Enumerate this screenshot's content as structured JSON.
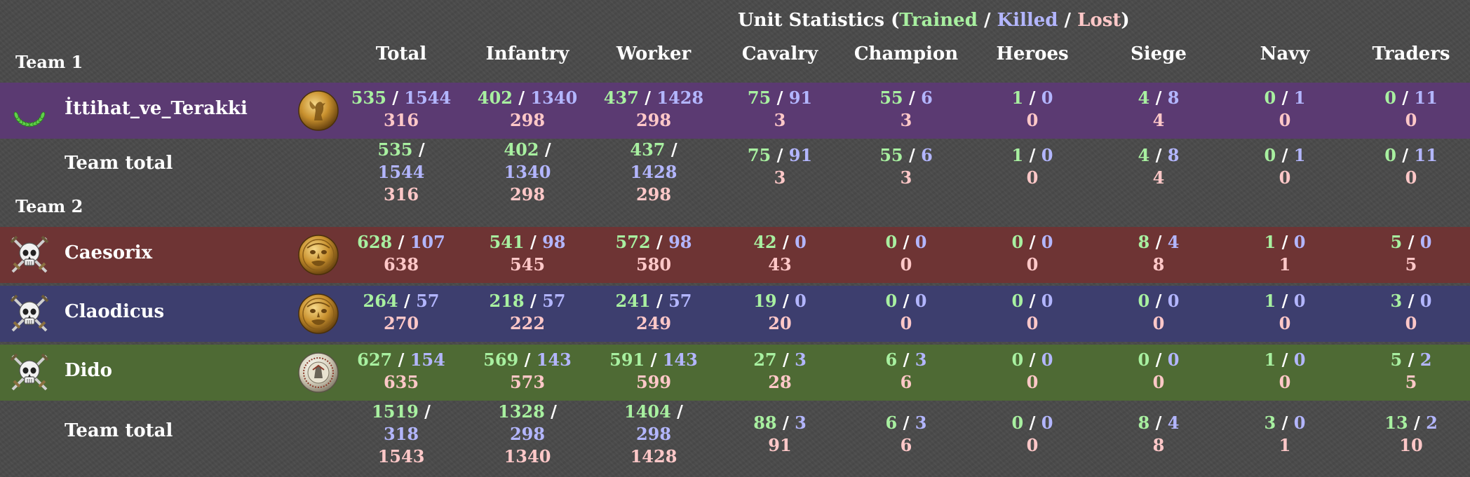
{
  "heading": {
    "prefix": "Unit Statistics (",
    "trained": "Trained",
    "sep1": " / ",
    "killed": "Killed",
    "sep2": " / ",
    "lost": "Lost",
    "suffix": ")"
  },
  "columns": [
    "Total",
    "Infantry",
    "Worker",
    "Cavalry",
    "Champion",
    "Heroes",
    "Siege",
    "Navy",
    "Traders"
  ],
  "teams": [
    {
      "label": "Team 1",
      "players": [
        {
          "name": "İttihat_ve_Terakki",
          "status_icon": "laurel-wreath-icon",
          "civ_emblem": "gold-eagle-emblem",
          "color": "#5b3a72",
          "stats": [
            {
              "trained": "535",
              "killed": "1544",
              "lost": "316"
            },
            {
              "trained": "402",
              "killed": "1340",
              "lost": "298"
            },
            {
              "trained": "437",
              "killed": "1428",
              "lost": "298"
            },
            {
              "trained": "75",
              "killed": "91",
              "lost": "3"
            },
            {
              "trained": "55",
              "killed": "6",
              "lost": "3"
            },
            {
              "trained": "1",
              "killed": "0",
              "lost": "0"
            },
            {
              "trained": "4",
              "killed": "8",
              "lost": "4"
            },
            {
              "trained": "0",
              "killed": "1",
              "lost": "0"
            },
            {
              "trained": "0",
              "killed": "11",
              "lost": "0"
            }
          ]
        }
      ],
      "total_label": "Team total",
      "totals": [
        {
          "trained": "535",
          "killed": "1544",
          "lost": "316"
        },
        {
          "trained": "402",
          "killed": "1340",
          "lost": "298"
        },
        {
          "trained": "437",
          "killed": "1428",
          "lost": "298"
        },
        {
          "trained": "75",
          "killed": "91",
          "lost": "3"
        },
        {
          "trained": "55",
          "killed": "6",
          "lost": "3"
        },
        {
          "trained": "1",
          "killed": "0",
          "lost": "0"
        },
        {
          "trained": "4",
          "killed": "8",
          "lost": "4"
        },
        {
          "trained": "0",
          "killed": "1",
          "lost": "0"
        },
        {
          "trained": "0",
          "killed": "11",
          "lost": "0"
        }
      ]
    },
    {
      "label": "Team 2",
      "players": [
        {
          "name": "Caesorix",
          "status_icon": "skull-crossed-swords-icon",
          "civ_emblem": "gold-celtic-face-emblem",
          "color": "#6e3434",
          "stats": [
            {
              "trained": "628",
              "killed": "107",
              "lost": "638"
            },
            {
              "trained": "541",
              "killed": "98",
              "lost": "545"
            },
            {
              "trained": "572",
              "killed": "98",
              "lost": "580"
            },
            {
              "trained": "42",
              "killed": "0",
              "lost": "43"
            },
            {
              "trained": "0",
              "killed": "0",
              "lost": "0"
            },
            {
              "trained": "0",
              "killed": "0",
              "lost": "0"
            },
            {
              "trained": "8",
              "killed": "4",
              "lost": "8"
            },
            {
              "trained": "1",
              "killed": "0",
              "lost": "1"
            },
            {
              "trained": "5",
              "killed": "0",
              "lost": "5"
            }
          ]
        },
        {
          "name": "Claodicus",
          "status_icon": "skull-crossed-swords-icon",
          "civ_emblem": "gold-celtic-face-emblem",
          "color": "#3d3e6e",
          "stats": [
            {
              "trained": "264",
              "killed": "57",
              "lost": "270"
            },
            {
              "trained": "218",
              "killed": "57",
              "lost": "222"
            },
            {
              "trained": "241",
              "killed": "57",
              "lost": "249"
            },
            {
              "trained": "19",
              "killed": "0",
              "lost": "20"
            },
            {
              "trained": "0",
              "killed": "0",
              "lost": "0"
            },
            {
              "trained": "0",
              "killed": "0",
              "lost": "0"
            },
            {
              "trained": "0",
              "killed": "0",
              "lost": "0"
            },
            {
              "trained": "1",
              "killed": "0",
              "lost": "0"
            },
            {
              "trained": "3",
              "killed": "0",
              "lost": "0"
            }
          ]
        },
        {
          "name": "Dido",
          "status_icon": "skull-crossed-swords-icon",
          "civ_emblem": "silver-carthage-emblem",
          "color": "#4e6a34",
          "stats": [
            {
              "trained": "627",
              "killed": "154",
              "lost": "635"
            },
            {
              "trained": "569",
              "killed": "143",
              "lost": "573"
            },
            {
              "trained": "591",
              "killed": "143",
              "lost": "599"
            },
            {
              "trained": "27",
              "killed": "3",
              "lost": "28"
            },
            {
              "trained": "6",
              "killed": "3",
              "lost": "6"
            },
            {
              "trained": "0",
              "killed": "0",
              "lost": "0"
            },
            {
              "trained": "0",
              "killed": "0",
              "lost": "0"
            },
            {
              "trained": "1",
              "killed": "0",
              "lost": "0"
            },
            {
              "trained": "5",
              "killed": "2",
              "lost": "5"
            }
          ]
        }
      ],
      "total_label": "Team total",
      "totals": [
        {
          "trained": "1519",
          "killed": "318",
          "lost": "1543"
        },
        {
          "trained": "1328",
          "killed": "298",
          "lost": "1340"
        },
        {
          "trained": "1404",
          "killed": "298",
          "lost": "1428"
        },
        {
          "trained": "88",
          "killed": "3",
          "lost": "91"
        },
        {
          "trained": "6",
          "killed": "3",
          "lost": "6"
        },
        {
          "trained": "0",
          "killed": "0",
          "lost": "0"
        },
        {
          "trained": "8",
          "killed": "4",
          "lost": "8"
        },
        {
          "trained": "3",
          "killed": "0",
          "lost": "1"
        },
        {
          "trained": "13",
          "killed": "2",
          "lost": "10"
        }
      ]
    }
  ]
}
